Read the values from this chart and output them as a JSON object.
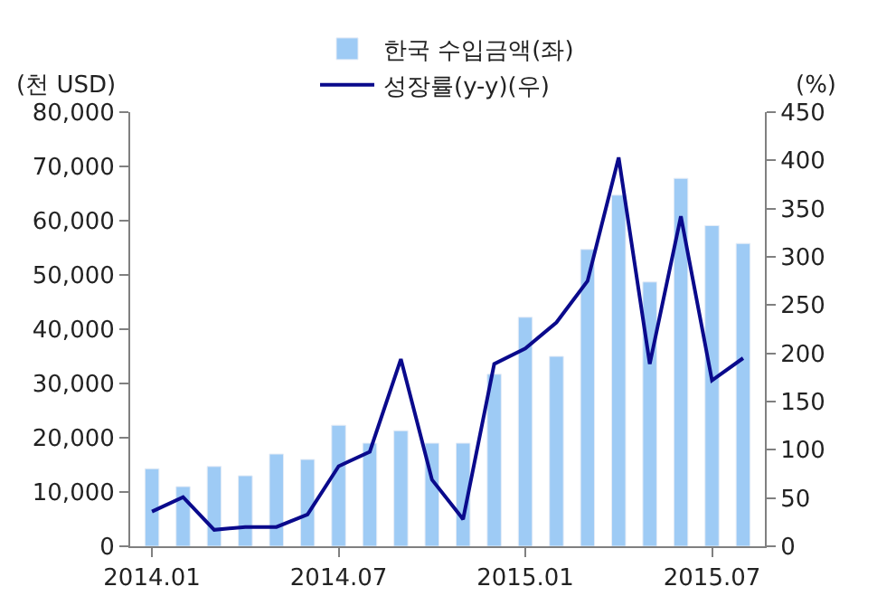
{
  "chart_data": {
    "type": "bar",
    "ylabel": "(천 USD)",
    "y2label": "(%)",
    "categories": [
      "2014.01",
      null,
      null,
      null,
      null,
      null,
      "2014.07",
      null,
      null,
      null,
      null,
      null,
      "2015.01",
      null,
      null,
      null,
      null,
      null,
      "2015.07",
      null
    ],
    "series": [
      {
        "name": "한국 수입금액(좌)",
        "color": "#9ecbf5",
        "values": [
          14300,
          11000,
          14700,
          13000,
          17000,
          16000,
          22300,
          19000,
          21300,
          19000,
          19000,
          31700,
          42200,
          35000,
          54700,
          64700,
          48700,
          67800,
          59100,
          55800
        ]
      },
      {
        "name": "성장률(y-y)(우)",
        "type": "line",
        "axis": "y2",
        "color": "#0a0a8c",
        "values": [
          36,
          51,
          17,
          20,
          20,
          33,
          83,
          98,
          194,
          69,
          28,
          189,
          205,
          232,
          275,
          403,
          189,
          342,
          172,
          195
        ]
      }
    ],
    "ylim": [
      0,
      80000
    ],
    "yticks": [
      {
        "value": 0,
        "label": "0"
      },
      {
        "value": 10000,
        "label": "10,000"
      },
      {
        "value": 20000,
        "label": "20,000"
      },
      {
        "value": 30000,
        "label": "30,000"
      },
      {
        "value": 40000,
        "label": "40,000"
      },
      {
        "value": 50000,
        "label": "50,000"
      },
      {
        "value": 60000,
        "label": "60,000"
      },
      {
        "value": 70000,
        "label": "70,000"
      },
      {
        "value": 80000,
        "label": "80,000"
      }
    ],
    "y2lim": [
      0,
      450
    ],
    "y2ticks": [
      0,
      50,
      100,
      150,
      200,
      250,
      300,
      350,
      400,
      450
    ],
    "legend": "top",
    "grid": false,
    "marker": "none",
    "line_style": "solid"
  }
}
